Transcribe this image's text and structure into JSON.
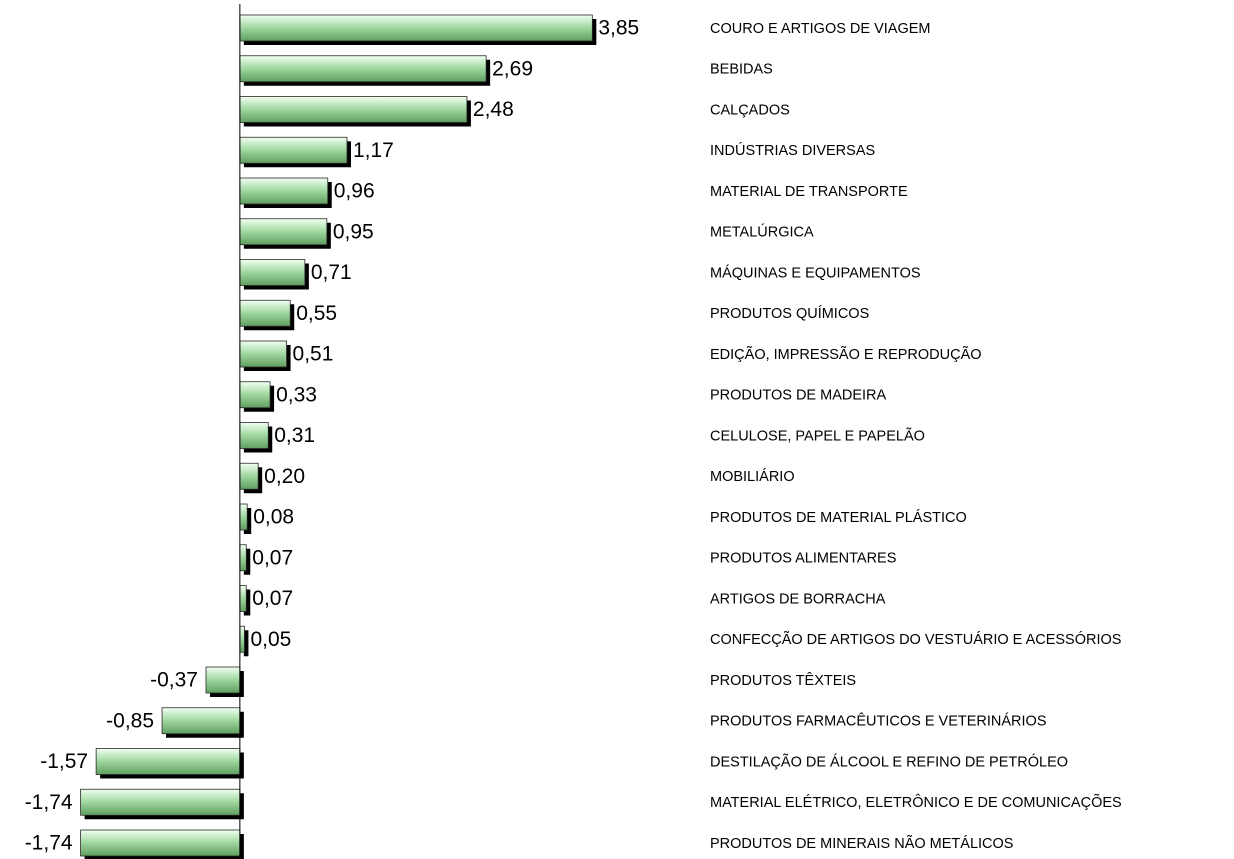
{
  "chart_data": {
    "type": "bar",
    "orientation": "horizontal",
    "categories": [
      "COURO E ARTIGOS DE VIAGEM",
      "BEBIDAS",
      "CALÇADOS",
      "INDÚSTRIAS DIVERSAS",
      "MATERIAL DE TRANSPORTE",
      "METALÚRGICA",
      "MÁQUINAS E EQUIPAMENTOS",
      "PRODUTOS QUÍMICOS",
      "EDIÇÃO, IMPRESSÃO E REPRODUÇÃO",
      "PRODUTOS DE MADEIRA",
      "CELULOSE, PAPEL E PAPELÃO",
      "MOBILIÁRIO",
      "PRODUTOS DE MATERIAL PLÁSTICO",
      "PRODUTOS ALIMENTARES",
      "ARTIGOS DE BORRACHA",
      "CONFECÇÃO DE ARTIGOS DO VESTUÁRIO E ACESSÓRIOS",
      "PRODUTOS TÊXTEIS",
      "PRODUTOS FARMACÊUTICOS E VETERINÁRIOS",
      "DESTILAÇÃO DE ÁLCOOL E REFINO DE PETRÓLEO",
      "MATERIAL ELÉTRICO, ELETRÔNICO E DE COMUNICAÇÕES",
      "PRODUTOS DE MINERAIS NÃO METÁLICOS"
    ],
    "values": [
      3.85,
      2.69,
      2.48,
      1.17,
      0.96,
      0.95,
      0.71,
      0.55,
      0.51,
      0.33,
      0.31,
      0.2,
      0.08,
      0.07,
      0.07,
      0.05,
      -0.37,
      -0.85,
      -1.57,
      -1.74,
      -1.74
    ],
    "value_labels": [
      "3,85",
      "2,69",
      "2,48",
      "1,17",
      "0,96",
      "0,95",
      "0,71",
      "0,55",
      "0,51",
      "0,33",
      "0,31",
      "0,20",
      "0,08",
      "0,07",
      "0,07",
      "0,05",
      "-0,37",
      "-0,85",
      "-1,57",
      "-1,74",
      "-1,74"
    ],
    "color": "#a6dba6",
    "xlim": [
      -2.62,
      4.6
    ]
  }
}
